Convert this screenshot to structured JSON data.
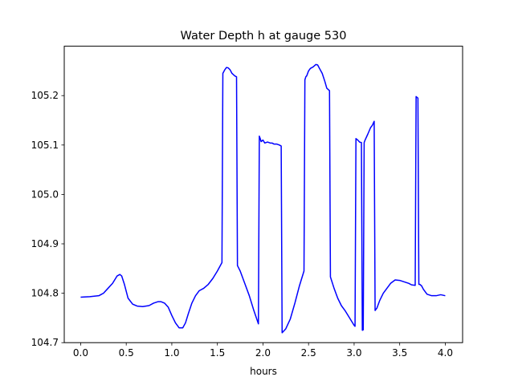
{
  "chart_data": {
    "type": "line",
    "title": "Water Depth h at gauge 530",
    "xlabel": "hours",
    "ylabel": "",
    "xlim": [
      -0.18,
      4.19
    ],
    "ylim": [
      104.7,
      105.3
    ],
    "x_ticks": [
      0.0,
      0.5,
      1.0,
      1.5,
      2.0,
      2.5,
      3.0,
      3.5,
      4.0
    ],
    "x_tick_labels": [
      "0.0",
      "0.5",
      "1.0",
      "1.5",
      "2.0",
      "2.5",
      "3.0",
      "3.5",
      "4.0"
    ],
    "y_ticks": [
      104.7,
      104.8,
      104.9,
      105.0,
      105.1,
      105.2
    ],
    "y_tick_labels": [
      "104.7",
      "104.8",
      "104.9",
      "105.0",
      "105.1",
      "105.2"
    ],
    "grid": false,
    "line_color": "#0000ff",
    "series": [
      {
        "x": [
          0.0,
          0.1,
          0.2,
          0.25,
          0.3,
          0.35,
          0.4,
          0.43,
          0.45,
          0.48,
          0.52,
          0.57,
          0.62,
          0.68,
          0.75,
          0.8,
          0.85,
          0.88,
          0.92,
          0.96,
          1.0,
          1.04,
          1.08,
          1.12,
          1.15,
          1.18,
          1.22,
          1.26,
          1.3,
          1.35,
          1.4,
          1.45,
          1.5,
          1.55,
          1.56,
          1.58,
          1.6,
          1.62,
          1.64,
          1.66,
          1.69,
          1.71,
          1.72,
          1.75,
          1.8,
          1.85,
          1.9,
          1.95,
          1.96,
          1.97,
          1.98,
          2.0,
          2.02,
          2.05,
          2.08,
          2.1,
          2.12,
          2.15,
          2.18,
          2.2,
          2.21,
          2.25,
          2.3,
          2.35,
          2.4,
          2.45,
          2.46,
          2.47,
          2.48,
          2.5,
          2.52,
          2.55,
          2.58,
          2.6,
          2.62,
          2.65,
          2.68,
          2.7,
          2.73,
          2.74,
          2.78,
          2.82,
          2.86,
          2.9,
          2.95,
          3.0,
          3.01,
          3.02,
          3.04,
          3.06,
          3.08,
          3.09,
          3.1,
          3.11,
          3.12,
          3.15,
          3.18,
          3.2,
          3.22,
          3.23,
          3.25,
          3.28,
          3.32,
          3.36,
          3.4,
          3.45,
          3.5,
          3.55,
          3.6,
          3.63,
          3.67,
          3.68,
          3.7,
          3.71,
          3.72,
          3.74,
          3.76,
          3.8,
          3.85,
          3.9,
          3.95,
          4.0
        ],
        "y": [
          104.792,
          104.793,
          104.795,
          104.8,
          104.81,
          104.82,
          104.835,
          104.838,
          104.835,
          104.818,
          104.79,
          104.778,
          104.774,
          104.773,
          104.775,
          104.78,
          104.783,
          104.783,
          104.78,
          104.772,
          104.755,
          104.74,
          104.73,
          104.73,
          104.74,
          104.758,
          104.78,
          104.795,
          104.805,
          104.81,
          104.818,
          104.83,
          104.845,
          104.862,
          105.245,
          105.252,
          105.257,
          105.256,
          105.252,
          105.245,
          105.24,
          105.238,
          104.856,
          104.845,
          104.82,
          104.795,
          104.765,
          104.738,
          105.118,
          105.113,
          105.107,
          105.11,
          105.104,
          105.106,
          105.104,
          105.104,
          105.102,
          105.102,
          105.1,
          105.098,
          104.72,
          104.728,
          104.748,
          104.78,
          104.815,
          104.845,
          105.232,
          105.238,
          105.24,
          105.25,
          105.255,
          105.258,
          105.263,
          105.262,
          105.255,
          105.245,
          105.228,
          105.215,
          105.21,
          104.833,
          104.81,
          104.79,
          104.775,
          104.765,
          104.75,
          104.735,
          104.733,
          105.113,
          105.11,
          105.106,
          105.105,
          104.725,
          104.726,
          105.105,
          105.11,
          105.122,
          105.135,
          105.14,
          105.148,
          104.765,
          104.77,
          104.785,
          104.8,
          104.81,
          104.82,
          104.827,
          104.826,
          104.823,
          104.82,
          104.817,
          104.816,
          105.198,
          105.195,
          104.818,
          104.818,
          104.815,
          104.808,
          104.798,
          104.795,
          104.795,
          104.797,
          104.795
        ]
      }
    ]
  }
}
